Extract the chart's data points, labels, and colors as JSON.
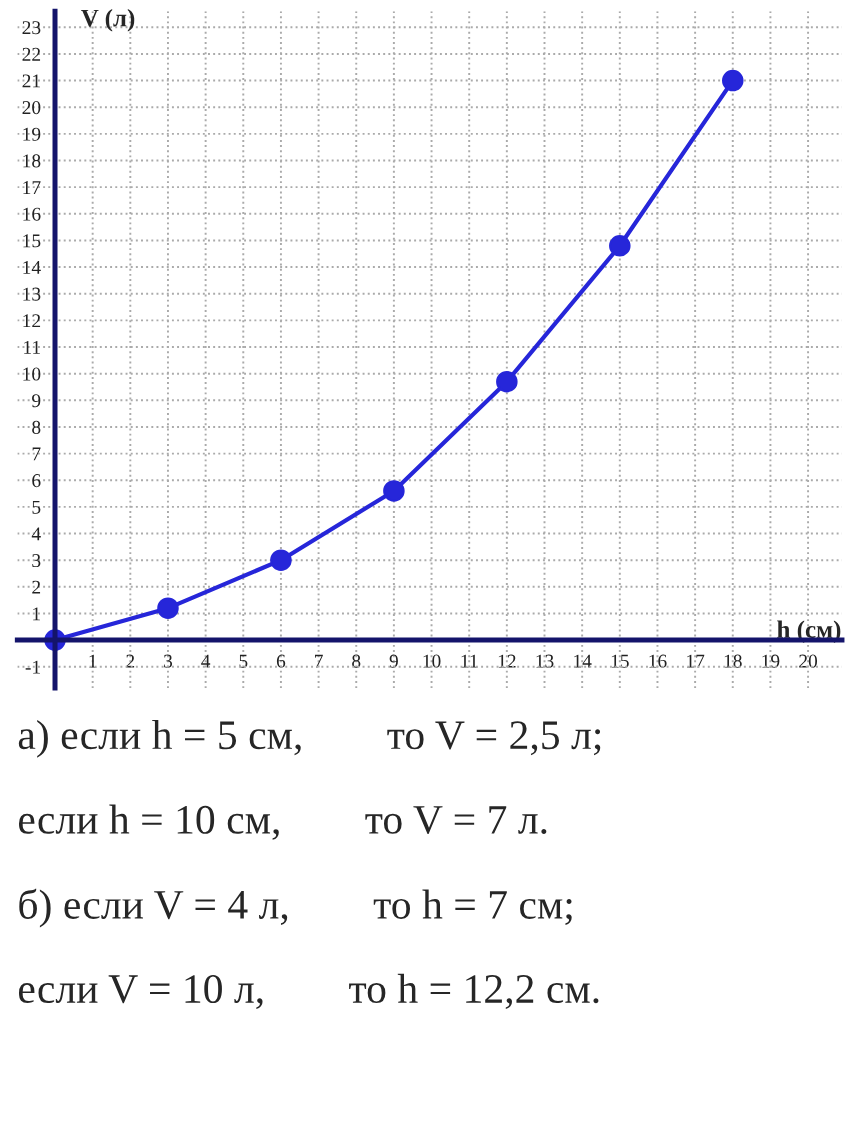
{
  "chart_data": {
    "type": "line",
    "xlabel": "h (см)",
    "ylabel": "V (л)",
    "x": [
      0,
      3,
      6,
      9,
      12,
      15,
      18
    ],
    "series": [
      {
        "color": "#2626d9",
        "values": [
          0,
          1.2,
          3,
          5.6,
          9.7,
          14.8,
          21
        ]
      }
    ],
    "xlim": [
      -1,
      20.9
    ],
    "ylim": [
      -1.8,
      23.6
    ],
    "xticks": [
      1,
      2,
      3,
      4,
      5,
      6,
      7,
      8,
      9,
      10,
      11,
      12,
      13,
      14,
      15,
      16,
      17,
      18,
      19,
      20
    ],
    "yticks": [
      -1,
      1,
      2,
      3,
      4,
      5,
      6,
      7,
      8,
      9,
      10,
      11,
      12,
      13,
      14,
      15,
      16,
      17,
      18,
      19,
      20,
      21,
      22,
      23
    ],
    "grid": true,
    "marker": "circle",
    "line_style": "solid",
    "legend": false,
    "annotations": [
      "а) если h = 5 см,        то V = 2,5 л;",
      "если h = 10 см,        то V = 7 л.",
      "б) если V = 4 л,        то h = 7 см;",
      "если V = 10 л,        то h = 12,2 см."
    ]
  }
}
